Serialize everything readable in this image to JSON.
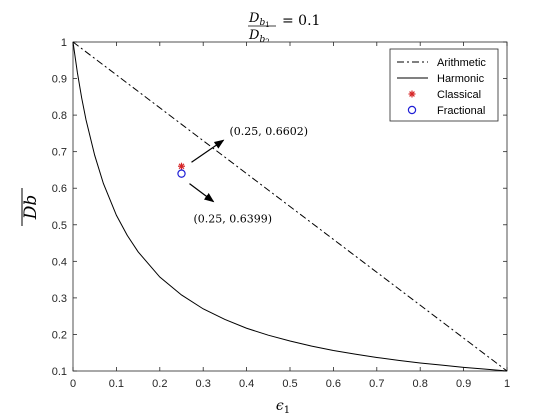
{
  "chart_data": {
    "type": "line",
    "title": {
      "numerator": "D",
      "numerator_sub": "b",
      "numerator_subsub": "1",
      "denominator": "D",
      "denominator_sub": "b",
      "denominator_subsub": "2",
      "rhs": "= 0.1"
    },
    "xlabel": {
      "symbol": "ϵ",
      "sub": "1"
    },
    "ylabel": "Db",
    "xlim": [
      0,
      1
    ],
    "ylim": [
      0.1,
      1
    ],
    "xticks": [
      0,
      0.1,
      0.2,
      0.3,
      0.4,
      0.5,
      0.6,
      0.7,
      0.8,
      0.9,
      1
    ],
    "xtick_labels": [
      "0",
      "0.1",
      "0.2",
      "0.3",
      "0.4",
      "0.5",
      "0.6",
      "0.7",
      "0.8",
      "0.9",
      "1"
    ],
    "yticks": [
      0.1,
      0.2,
      0.3,
      0.4,
      0.5,
      0.6,
      0.7,
      0.8,
      0.9,
      1
    ],
    "ytick_labels": [
      "0.1",
      "0.2",
      "0.3",
      "0.4",
      "0.5",
      "0.6",
      "0.7",
      "0.8",
      "0.9",
      "1"
    ],
    "grid": false,
    "legend_position": "top-right",
    "series": [
      {
        "name": "Arithmetic",
        "style": "dash-dot",
        "color": "#000000",
        "x": [
          0,
          1
        ],
        "y": [
          1,
          0.1
        ]
      },
      {
        "name": "Harmonic",
        "style": "solid",
        "color": "#000000",
        "x": [
          0,
          0.01,
          0.02,
          0.03,
          0.05,
          0.07,
          0.1,
          0.125,
          0.15,
          0.2,
          0.25,
          0.3,
          0.35,
          0.4,
          0.45,
          0.5,
          0.55,
          0.6,
          0.65,
          0.7,
          0.75,
          0.8,
          0.85,
          0.9,
          0.95,
          1
        ],
        "y": [
          1,
          0.917,
          0.847,
          0.787,
          0.69,
          0.613,
          0.526,
          0.471,
          0.426,
          0.357,
          0.308,
          0.27,
          0.241,
          0.217,
          0.198,
          0.182,
          0.168,
          0.156,
          0.146,
          0.137,
          0.129,
          0.122,
          0.116,
          0.11,
          0.105,
          0.1
        ]
      },
      {
        "name": "Classical",
        "style": "marker-asterisk",
        "color": "#d62728",
        "x": [
          0.25
        ],
        "y": [
          0.6602
        ]
      },
      {
        "name": "Fractional",
        "style": "marker-circle",
        "color": "#1f1fd6",
        "x": [
          0.25
        ],
        "y": [
          0.6399
        ]
      }
    ],
    "annotations": [
      {
        "text": "(0.25, 0.6602)",
        "target": [
          0.25,
          0.6602
        ]
      },
      {
        "text": "(0.25, 0.6399)",
        "target": [
          0.25,
          0.6399
        ]
      }
    ]
  }
}
